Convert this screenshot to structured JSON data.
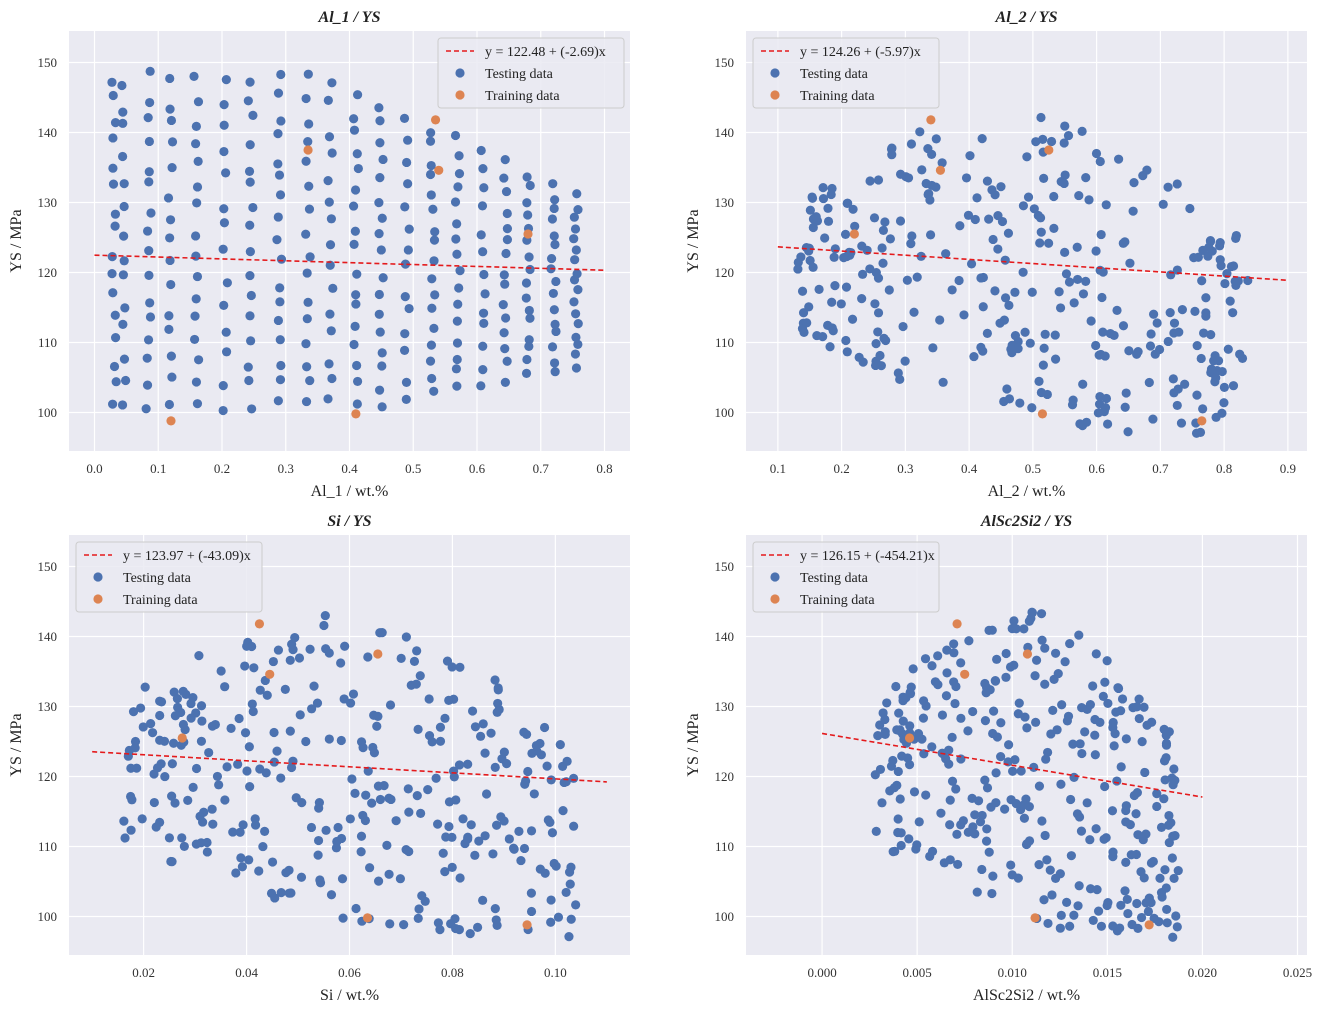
{
  "chart_data": [
    {
      "type": "scatter",
      "title": "Al_1 / YS",
      "xlabel": "Al_1 / wt.%",
      "ylabel": "YS / MPa",
      "xlim": [
        -0.04,
        0.84
      ],
      "ylim": [
        94.5,
        154.5
      ],
      "xticks": [
        0.0,
        0.1,
        0.2,
        0.3,
        0.4,
        0.5,
        0.6,
        0.7,
        0.8
      ],
      "xtick_labels": [
        "0.0",
        "0.1",
        "0.2",
        "0.3",
        "0.4",
        "0.5",
        "0.6",
        "0.7",
        "0.8"
      ],
      "yticks": [
        100,
        110,
        120,
        130,
        140,
        150
      ],
      "ytick_labels": [
        "100",
        "110",
        "120",
        "130",
        "140",
        "150"
      ],
      "legend_position": "top-right",
      "fit": {
        "label": "y = 122.48 + (-2.69)x",
        "intercept": 122.48,
        "slope": -2.69,
        "x_range": [
          0.0,
          0.8
        ]
      },
      "series": [
        {
          "name": "Testing data",
          "color": "#4c72b0",
          "x": [],
          "y": []
        },
        {
          "name": "Training data",
          "color": "#dd8452",
          "x": [
            0.12,
            0.335,
            0.41,
            0.535,
            0.54,
            0.68
          ],
          "y": [
            98.8,
            137.5,
            99.8,
            141.8,
            134.6,
            125.5
          ]
        }
      ]
    },
    {
      "type": "scatter",
      "title": "Al_2 / YS",
      "xlabel": "Al_2 / wt.%",
      "ylabel": "YS / MPa",
      "xlim": [
        0.05,
        0.93
      ],
      "ylim": [
        94.5,
        154.5
      ],
      "xticks": [
        0.1,
        0.2,
        0.3,
        0.4,
        0.5,
        0.6,
        0.7,
        0.8,
        0.9
      ],
      "xtick_labels": [
        "0.1",
        "0.2",
        "0.3",
        "0.4",
        "0.5",
        "0.6",
        "0.7",
        "0.8",
        "0.9"
      ],
      "yticks": [
        100,
        110,
        120,
        130,
        140,
        150
      ],
      "ytick_labels": [
        "100",
        "110",
        "120",
        "130",
        "140",
        "150"
      ],
      "legend_position": "top-left",
      "fit": {
        "label": "y = 124.26 + (-5.97)x",
        "intercept": 124.26,
        "slope": -5.97,
        "x_range": [
          0.1,
          0.9
        ]
      },
      "series": [
        {
          "name": "Testing data",
          "color": "#4c72b0",
          "x": [],
          "y": []
        },
        {
          "name": "Training data",
          "color": "#dd8452",
          "x": [
            0.22,
            0.34,
            0.355,
            0.515,
            0.525,
            0.765
          ],
          "y": [
            125.5,
            141.8,
            134.6,
            99.8,
            137.5,
            98.8
          ]
        }
      ]
    },
    {
      "type": "scatter",
      "title": "Si / YS",
      "xlabel": "Si / wt.%",
      "ylabel": "YS / MPa",
      "xlim": [
        0.0055,
        0.1145
      ],
      "ylim": [
        94.5,
        154.5
      ],
      "xticks": [
        0.02,
        0.04,
        0.06,
        0.08,
        0.1
      ],
      "xtick_labels": [
        "0.02",
        "0.04",
        "0.06",
        "0.08",
        "0.10"
      ],
      "yticks": [
        100,
        110,
        120,
        130,
        140,
        150
      ],
      "ytick_labels": [
        "100",
        "110",
        "120",
        "130",
        "140",
        "150"
      ],
      "legend_position": "top-left",
      "fit": {
        "label": "y = 123.97 + (-43.09)x",
        "intercept": 123.97,
        "slope": -43.09,
        "x_range": [
          0.01,
          0.11
        ]
      },
      "series": [
        {
          "name": "Testing data",
          "color": "#4c72b0",
          "x": [],
          "y": []
        },
        {
          "name": "Training data",
          "color": "#dd8452",
          "x": [
            0.0275,
            0.0425,
            0.0445,
            0.0635,
            0.0655,
            0.0945
          ],
          "y": [
            125.5,
            141.8,
            134.6,
            99.8,
            137.5,
            98.8
          ]
        }
      ]
    },
    {
      "type": "scatter",
      "title": "AlSc2Si2 / YS",
      "xlabel": "AlSc2Si2 / wt.%",
      "ylabel": "YS / MPa",
      "xlim": [
        -0.004,
        0.0255
      ],
      "ylim": [
        94.5,
        154.5
      ],
      "xticks": [
        0.0,
        0.005,
        0.01,
        0.015,
        0.02,
        0.025
      ],
      "xtick_labels": [
        "0.000",
        "0.005",
        "0.010",
        "0.015",
        "0.020",
        "0.025"
      ],
      "yticks": [
        100,
        110,
        120,
        130,
        140,
        150
      ],
      "ytick_labels": [
        "100",
        "110",
        "120",
        "130",
        "140",
        "150"
      ],
      "legend_position": "top-left",
      "fit": {
        "label": "y = 126.15 + (-454.21)x",
        "intercept": 126.15,
        "slope": -454.21,
        "x_range": [
          0.0,
          0.02
        ]
      },
      "series": [
        {
          "name": "Testing data",
          "color": "#4c72b0",
          "x": [],
          "y": []
        },
        {
          "name": "Training data",
          "color": "#dd8452",
          "x": [
            0.0046,
            0.0071,
            0.0075,
            0.0108,
            0.0112,
            0.0172
          ],
          "y": [
            125.5,
            141.8,
            134.6,
            137.5,
            99.8,
            98.8
          ]
        }
      ]
    }
  ],
  "colors": {
    "background": "#eaeaf2",
    "grid": "#ffffff",
    "fit_line": "#e41a1c"
  }
}
